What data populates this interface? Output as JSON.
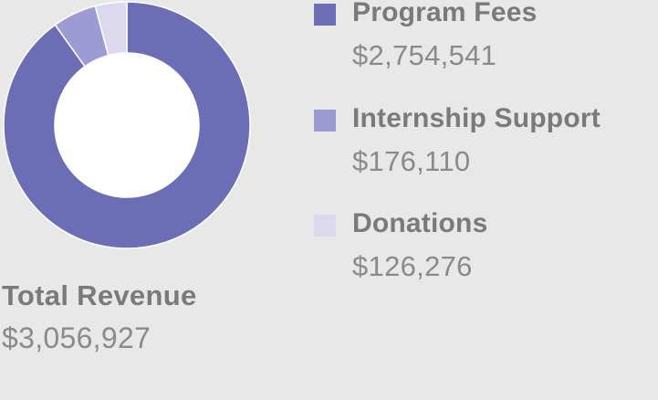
{
  "chart_data": {
    "type": "pie",
    "categories": [
      "Program Fees",
      "Internship Support",
      "Donations"
    ],
    "values": [
      2754541,
      176110,
      126276
    ],
    "value_labels": [
      "$2,754,541",
      "$176,110",
      "$126,276"
    ],
    "colors": [
      "#6b6db5",
      "#9c9bd3",
      "#dcd8ee"
    ],
    "donut": true,
    "legend_position": "right",
    "total": {
      "label": "Total Revenue",
      "value": "$3,056,927"
    }
  }
}
